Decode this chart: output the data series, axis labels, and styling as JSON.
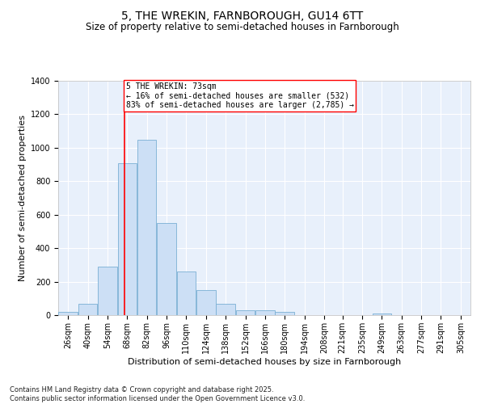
{
  "title": "5, THE WREKIN, FARNBOROUGH, GU14 6TT",
  "subtitle": "Size of property relative to semi-detached houses in Farnborough",
  "xlabel": "Distribution of semi-detached houses by size in Farnborough",
  "ylabel": "Number of semi-detached properties",
  "bar_color": "#ccdff5",
  "bar_edge_color": "#7aafd4",
  "background_color": "#e8f0fb",
  "grid_color": "#ffffff",
  "annotation_text": "5 THE WREKIN: 73sqm\n← 16% of semi-detached houses are smaller (532)\n83% of semi-detached houses are larger (2,785) →",
  "vline_x": 73,
  "vline_color": "red",
  "categories": [
    "26sqm",
    "40sqm",
    "54sqm",
    "68sqm",
    "82sqm",
    "96sqm",
    "110sqm",
    "124sqm",
    "138sqm",
    "152sqm",
    "166sqm",
    "180sqm",
    "194sqm",
    "208sqm",
    "221sqm",
    "235sqm",
    "249sqm",
    "263sqm",
    "277sqm",
    "291sqm",
    "305sqm"
  ],
  "bin_starts": [
    26,
    40,
    54,
    68,
    82,
    96,
    110,
    124,
    138,
    152,
    166,
    180,
    194,
    208,
    221,
    235,
    249,
    263,
    277,
    291,
    305
  ],
  "bin_width": 14,
  "values": [
    20,
    70,
    290,
    910,
    1050,
    550,
    260,
    150,
    70,
    30,
    30,
    20,
    0,
    0,
    0,
    0,
    10,
    0,
    0,
    0,
    0
  ],
  "ylim": [
    0,
    1400
  ],
  "yticks": [
    0,
    200,
    400,
    600,
    800,
    1000,
    1200,
    1400
  ],
  "footer": "Contains HM Land Registry data © Crown copyright and database right 2025.\nContains public sector information licensed under the Open Government Licence v3.0.",
  "title_fontsize": 10,
  "subtitle_fontsize": 8.5,
  "axis_label_fontsize": 8,
  "tick_fontsize": 7,
  "annotation_fontsize": 7,
  "footer_fontsize": 6
}
